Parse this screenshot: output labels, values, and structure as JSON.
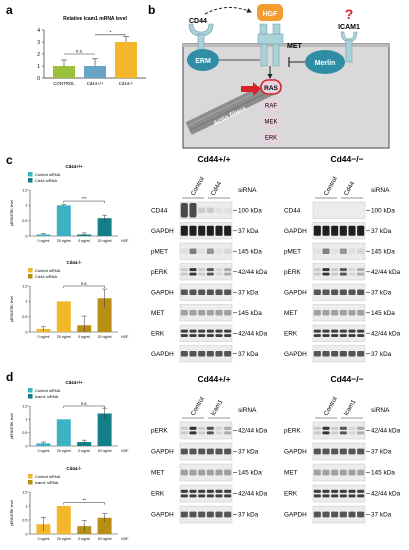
{
  "panels": {
    "a": "a",
    "b": "b",
    "c": "c",
    "d": "d"
  },
  "panel_a": {
    "chart_data": {
      "type": "bar",
      "title": "Relative Icam1 mRNA level",
      "categories": [
        "CONTROL",
        "Cd44+/+",
        "Cd44-/-"
      ],
      "values": [
        1.0,
        1.0,
        3.0
      ],
      "errors": [
        0.5,
        0.6,
        0.45
      ],
      "colors": [
        "#9cbf3c",
        "#6aa3c8",
        "#f2b829"
      ],
      "ylim": [
        0,
        4
      ],
      "yticks": [
        0,
        1,
        2,
        3,
        4
      ],
      "sig": [
        {
          "from": 0,
          "to": 1,
          "label": "n.s."
        },
        {
          "from": 1,
          "to": 2,
          "label": "*"
        }
      ]
    }
  },
  "panel_b": {
    "labels": {
      "cd44": "CD44",
      "hgf": "HGF",
      "met": "MET",
      "icam1": "ICAM1",
      "question": "?",
      "erm": "ERM",
      "merlin": "Merlin",
      "actin": "Actin fibers",
      "ras": "RAS",
      "raf": "RAF",
      "mek": "MEK",
      "erk": "ERK"
    },
    "colors": {
      "hgf": "#f39c2f",
      "receptor": "#a9d3d9",
      "erm": "#2f8ea5",
      "merlin": "#2f8ea5",
      "kinase": "#e9d2e0",
      "arrow": "#d9232a",
      "question": "#d9232a"
    }
  },
  "panel_c": {
    "chart_data": [
      {
        "type": "bar",
        "title": "Cd44+/+",
        "ylabel": "pERK/ERK level",
        "categories": [
          "0 ng/ml",
          "20 ng/ml",
          "0 ng/ml",
          "20 ng/ml"
        ],
        "xunit": "HGF",
        "legend": [
          "Control siRNA",
          "Cd44 siRNA"
        ],
        "values": [
          0.05,
          1.0,
          0.05,
          0.58
        ],
        "errors": [
          0.03,
          0.02,
          0.05,
          0.1
        ],
        "colors": [
          "#3bb3c3",
          "#3bb3c3",
          "#137f88",
          "#137f88"
        ],
        "ylim": [
          0,
          1.5
        ],
        "yticks": [
          0,
          0.5,
          1,
          1.5
        ],
        "sig": [
          {
            "from": 1,
            "to": 3,
            "label": "***"
          }
        ]
      },
      {
        "type": "bar",
        "title": "Cd44-/-",
        "ylabel": "pERK/ERK level",
        "categories": [
          "0 ng/ml",
          "20 ng/ml",
          "0 ng/ml",
          "20 ng/ml"
        ],
        "xunit": "HGF",
        "legend": [
          "Control siRNA",
          "Cd44 siRNA"
        ],
        "values": [
          0.1,
          1.0,
          0.22,
          1.1
        ],
        "errors": [
          0.07,
          0.0,
          0.3,
          0.3
        ],
        "colors": [
          "#f2b829",
          "#f2b829",
          "#b88f13",
          "#b88f13"
        ],
        "ylim": [
          0,
          1.5
        ],
        "yticks": [
          0,
          0.5,
          1,
          1.5
        ],
        "sig": [
          {
            "from": 1,
            "to": 3,
            "label": "n.s."
          }
        ]
      }
    ]
  },
  "panel_d": {
    "chart_data": [
      {
        "type": "bar",
        "title": "Cd44+/+",
        "ylabel": "pERK/ERK level",
        "categories": [
          "0 ng/ml",
          "20 ng/ml",
          "0 ng/ml",
          "20 ng/ml"
        ],
        "xunit": "HGF",
        "legend": [
          "Control siRNA",
          "Icam1 siRNA"
        ],
        "values": [
          0.1,
          1.0,
          0.15,
          1.22
        ],
        "errors": [
          0.05,
          0.0,
          0.07,
          0.2
        ],
        "colors": [
          "#3bb3c3",
          "#3bb3c3",
          "#137f88",
          "#137f88"
        ],
        "ylim": [
          0,
          1.5
        ],
        "yticks": [
          0,
          0.5,
          1,
          1.5
        ],
        "sig": [
          {
            "from": 1,
            "to": 3,
            "label": "n.s."
          }
        ]
      },
      {
        "type": "bar",
        "title": "Cd44-/-",
        "ylabel": "pERK/ERK level",
        "categories": [
          "0 ng/ml",
          "20 ng/ml",
          "0 ng/ml",
          "20 ng/ml"
        ],
        "xunit": "HGF",
        "legend": [
          "Control siRNA",
          "Icam1 siRNA"
        ],
        "values": [
          0.35,
          1.0,
          0.28,
          0.58
        ],
        "errors": [
          0.25,
          0.0,
          0.2,
          0.15
        ],
        "colors": [
          "#f2b829",
          "#f2b829",
          "#b88f13",
          "#b88f13"
        ],
        "ylim": [
          0,
          1.5
        ],
        "yticks": [
          0,
          0.5,
          1,
          1.5
        ],
        "sig": [
          {
            "from": 1,
            "to": 3,
            "label": "**"
          }
        ]
      }
    ]
  },
  "blots_c": [
    {
      "title": "Cd44+/+",
      "lanes": [
        "Control",
        "Cd44"
      ],
      "sirna": "siRNA",
      "rows": [
        {
          "protein": "CD44",
          "kda": "100 kDa",
          "pattern": "cd44_wt"
        },
        {
          "protein": "GAPDH",
          "kda": "37 kDa",
          "pattern": "strong"
        },
        {
          "protein": "pMET",
          "kda": "145 kDa",
          "pattern": "induced"
        },
        {
          "protein": "pERK",
          "kda": "42/44 kDa",
          "pattern": "induced2"
        },
        {
          "protein": "GAPDH",
          "kda": "37 kDa",
          "pattern": "medium"
        },
        {
          "protein": "MET",
          "kda": "145 kDa",
          "pattern": "faint"
        },
        {
          "protein": "ERK",
          "kda": "42/44 kDa",
          "pattern": "double"
        },
        {
          "protein": "GAPDH",
          "kda": "37 kDa",
          "pattern": "medium"
        }
      ]
    },
    {
      "title": "Cd44−/−",
      "lanes": [
        "Control",
        "Cd44"
      ],
      "sirna": "siRNA",
      "rows": [
        {
          "protein": "CD44",
          "kda": "100 kDa",
          "pattern": "none"
        },
        {
          "protein": "GAPDH",
          "kda": "37 kDa",
          "pattern": "strong"
        },
        {
          "protein": "pMET",
          "kda": "145 kDa",
          "pattern": "induced"
        },
        {
          "protein": "pERK",
          "kda": "42/44 kDa",
          "pattern": "induced2"
        },
        {
          "protein": "GAPDH",
          "kda": "37 kDa",
          "pattern": "medium"
        },
        {
          "protein": "MET",
          "kda": "145 kDa",
          "pattern": "faint"
        },
        {
          "protein": "ERK",
          "kda": "42/44 kDa",
          "pattern": "double"
        },
        {
          "protein": "GAPDH",
          "kda": "37 kDa",
          "pattern": "medium"
        }
      ]
    }
  ],
  "blots_d": [
    {
      "title": "Cd44+/+",
      "lanes": [
        "Control",
        "Icam1"
      ],
      "sirna": "siRNA",
      "rows": [
        {
          "protein": "pERK",
          "kda": "42/44 kDa",
          "pattern": "induced2"
        },
        {
          "protein": "GAPDH",
          "kda": "37 kDa",
          "pattern": "medium"
        },
        {
          "protein": "MET",
          "kda": "145 kDa",
          "pattern": "faint"
        },
        {
          "protein": "ERK",
          "kda": "42/44 kDa",
          "pattern": "double"
        },
        {
          "protein": "GAPDH",
          "kda": "37 kDa",
          "pattern": "medium"
        }
      ]
    },
    {
      "title": "Cd44−/−",
      "lanes": [
        "Control",
        "Icam1"
      ],
      "sirna": "siRNA",
      "rows": [
        {
          "protein": "pERK",
          "kda": "42/44 kDa",
          "pattern": "induced2"
        },
        {
          "protein": "GAPDH",
          "kda": "37 kDa",
          "pattern": "medium"
        },
        {
          "protein": "MET",
          "kda": "145 kDa",
          "pattern": "faint"
        },
        {
          "protein": "ERK",
          "kda": "42/44 kDa",
          "pattern": "double"
        },
        {
          "protein": "GAPDH",
          "kda": "37 kDa",
          "pattern": "medium"
        }
      ]
    }
  ]
}
